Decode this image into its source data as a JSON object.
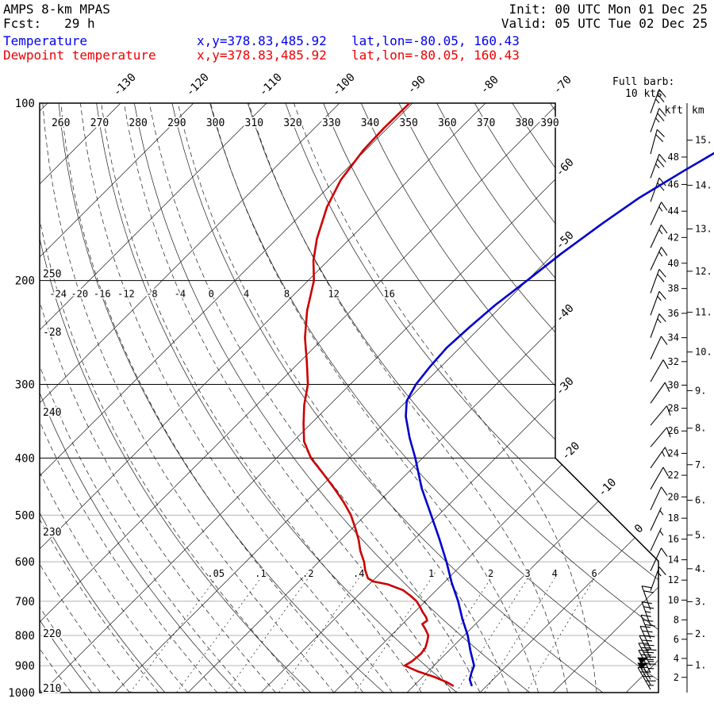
{
  "header": {
    "model": "AMPS 8-km MPAS",
    "fcst": "Fcst:   29 h",
    "init": "Init: 00 UTC Mon 01 Dec 25",
    "valid": "Valid: 05 UTC Tue 02 Dec 25",
    "temperature_label": "Temperature",
    "temperature_xy": "x,y=378.83,485.92",
    "temperature_latlon": "lat,lon=-80.05, 160.43",
    "dewpoint_label": "Dewpoint temperature",
    "dewpoint_xy": "x,y=378.83,485.92",
    "dewpoint_latlon": "lat,lon=-80.05, 160.43"
  },
  "legend": {
    "full_barb_label": "Full barb:",
    "full_barb_value": "10 kts"
  },
  "axes": {
    "pressure_hpa": [
      100,
      200,
      300,
      400,
      500,
      600,
      700,
      800,
      900,
      1000
    ],
    "isotherm_top_c": [
      -130,
      -120,
      -110,
      -100,
      -90,
      -80,
      -70
    ],
    "isotherm_right_c": [
      -60,
      -50,
      -40,
      -30,
      -20,
      -10,
      0
    ],
    "dry_adiabat_top_k": [
      260,
      270,
      280,
      290,
      300,
      310,
      320,
      330,
      340,
      350,
      360,
      370,
      380,
      390
    ],
    "dry_adiabat_left_k": [
      250,
      240,
      230,
      220,
      210
    ],
    "moist_adiabat_labels_c": [
      -24,
      -20,
      -16,
      -12,
      -8,
      -4,
      0,
      4,
      8,
      12,
      16
    ],
    "moist_adiabat_left_c": -28,
    "mixing_ratio_gkg": [
      0.05,
      0.1,
      0.2,
      0.4,
      1,
      2,
      3,
      4,
      6
    ],
    "height_kft_header": "kft",
    "height_km_header": "km",
    "height_kft": [
      2,
      4,
      6,
      8,
      10,
      12,
      14,
      16,
      18,
      20,
      22,
      24,
      26,
      28,
      30,
      32,
      34,
      36,
      38,
      40,
      42,
      44,
      46,
      48
    ],
    "height_km": [
      1,
      2,
      3,
      4,
      5,
      6,
      7,
      8,
      9,
      10,
      11,
      12,
      13,
      14,
      15
    ]
  },
  "chart_data": {
    "type": "line",
    "chart_kind": "skew-T log-p atmospheric sounding",
    "pressure_range_hpa": [
      100,
      1000
    ],
    "temperature_series": {
      "name": "Temperature",
      "color": "#0000cc",
      "points_p_t": [
        [
          975,
          -2
        ],
        [
          950,
          -3.2
        ],
        [
          925,
          -3.9
        ],
        [
          900,
          -4.5
        ],
        [
          850,
          -7
        ],
        [
          800,
          -9.5
        ],
        [
          750,
          -12.5
        ],
        [
          700,
          -15.5
        ],
        [
          650,
          -19
        ],
        [
          600,
          -22.5
        ],
        [
          550,
          -26.5
        ],
        [
          500,
          -31
        ],
        [
          450,
          -36
        ],
        [
          400,
          -41
        ],
        [
          370,
          -44.5
        ],
        [
          340,
          -48
        ],
        [
          320,
          -50
        ],
        [
          300,
          -51
        ],
        [
          280,
          -51.5
        ],
        [
          260,
          -51.8
        ],
        [
          240,
          -51.5
        ],
        [
          220,
          -51
        ],
        [
          200,
          -50
        ],
        [
          180,
          -49
        ],
        [
          160,
          -47.5
        ],
        [
          145,
          -46
        ],
        [
          130,
          -43.5
        ],
        [
          120,
          -41.5
        ],
        [
          112,
          -39.5
        ]
      ]
    },
    "dewpoint_series": {
      "name": "Dewpoint temperature",
      "color": "#cc0000",
      "points_p_t": [
        [
          975,
          -4.5
        ],
        [
          960,
          -6
        ],
        [
          940,
          -8.5
        ],
        [
          920,
          -11.5
        ],
        [
          900,
          -14
        ],
        [
          885,
          -13.6
        ],
        [
          860,
          -13.4
        ],
        [
          840,
          -13.6
        ],
        [
          820,
          -14.2
        ],
        [
          800,
          -14.9
        ],
        [
          780,
          -16.2
        ],
        [
          765,
          -17.3
        ],
        [
          755,
          -17.1
        ],
        [
          745,
          -17.7
        ],
        [
          730,
          -18.9
        ],
        [
          715,
          -20
        ],
        [
          700,
          -21.2
        ],
        [
          685,
          -22.8
        ],
        [
          670,
          -24.6
        ],
        [
          655,
          -27.5
        ],
        [
          648,
          -29.8
        ],
        [
          640,
          -31
        ],
        [
          620,
          -32.5
        ],
        [
          600,
          -33.8
        ],
        [
          575,
          -35.8
        ],
        [
          550,
          -37.6
        ],
        [
          525,
          -39.7
        ],
        [
          500,
          -42
        ],
        [
          475,
          -44.8
        ],
        [
          450,
          -48
        ],
        [
          425,
          -51.5
        ],
        [
          400,
          -55.3
        ],
        [
          375,
          -58.5
        ],
        [
          350,
          -61
        ],
        [
          325,
          -63.5
        ],
        [
          300,
          -65.8
        ],
        [
          275,
          -69
        ],
        [
          250,
          -72.6
        ],
        [
          225,
          -76
        ],
        [
          200,
          -79.2
        ],
        [
          185,
          -82
        ],
        [
          170,
          -84.5
        ],
        [
          150,
          -87.5
        ],
        [
          135,
          -89.3
        ],
        [
          120,
          -90.3
        ],
        [
          110,
          -90.5
        ],
        [
          100,
          -90.4
        ]
      ]
    },
    "wind_barbs_p_spd_dir": [
      [
        104,
        25,
        20
      ],
      [
        112,
        25,
        20
      ],
      [
        122,
        20,
        15
      ],
      [
        134,
        25,
        20
      ],
      [
        147,
        20,
        20
      ],
      [
        161,
        15,
        25
      ],
      [
        176,
        15,
        25
      ],
      [
        192,
        15,
        25
      ],
      [
        210,
        20,
        20
      ],
      [
        229,
        15,
        20
      ],
      [
        250,
        15,
        20
      ],
      [
        272,
        10,
        25
      ],
      [
        297,
        10,
        30
      ],
      [
        323,
        10,
        35
      ],
      [
        352,
        10,
        40
      ],
      [
        383,
        10,
        40
      ],
      [
        416,
        15,
        35
      ],
      [
        452,
        10,
        30
      ],
      [
        490,
        10,
        25
      ],
      [
        531,
        5,
        25
      ],
      [
        575,
        5,
        25
      ],
      [
        622,
        10,
        25
      ],
      [
        672,
        15,
        20
      ],
      [
        724,
        20,
        340
      ],
      [
        770,
        25,
        340
      ],
      [
        810,
        30,
        338
      ],
      [
        845,
        35,
        336
      ],
      [
        875,
        40,
        334
      ],
      [
        900,
        45,
        332
      ],
      [
        925,
        45,
        332
      ],
      [
        950,
        50,
        330
      ],
      [
        970,
        50,
        330
      ],
      [
        988,
        45,
        330
      ]
    ],
    "background": {
      "isotherms_c": {
        "min": -160,
        "max": 40,
        "step": 10
      },
      "dry_adiabats_k": {
        "min": 200,
        "max": 400,
        "step": 10
      },
      "moist_adiabats_c": {
        "min": -60,
        "max": 16,
        "step": 4
      },
      "mixing_ratio_gkg": [
        0.05,
        0.1,
        0.2,
        0.4,
        1,
        2,
        3,
        4,
        6
      ]
    }
  },
  "colors": {
    "temperature": "#0000cc",
    "dewpoint": "#cc0000",
    "header_blue": "#0000ee",
    "header_red": "#ee0000",
    "grid_dark": "#000000",
    "grid_light": "#b4b4b4",
    "thin_line": "#1a1a1a"
  }
}
